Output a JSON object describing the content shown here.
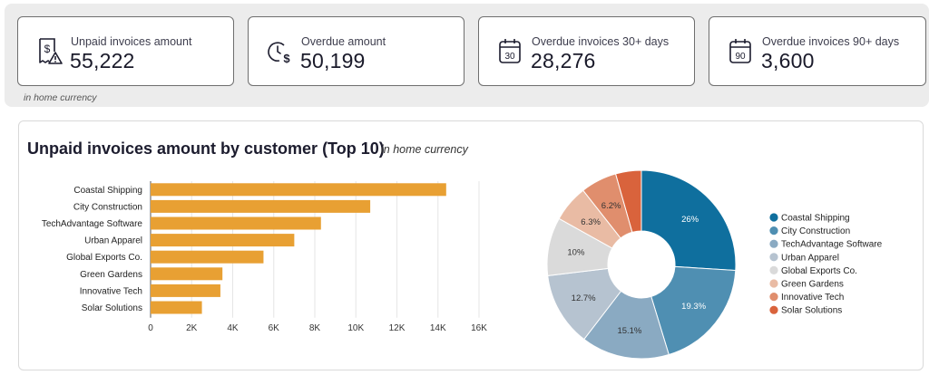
{
  "kpis": [
    {
      "label": "Unpaid invoices amount",
      "value": "55,222",
      "icon": "invoice-alert-icon"
    },
    {
      "label": "Overdue amount",
      "value": "50,199",
      "icon": "clock-dollar-icon"
    },
    {
      "label": "Overdue invoices 30+ days",
      "value": "28,276",
      "icon": "calendar-30-icon",
      "badge": "30"
    },
    {
      "label": "Overdue invoices 90+ days",
      "value": "3,600",
      "icon": "calendar-90-icon",
      "badge": "90"
    }
  ],
  "currency_note": "in home currency",
  "chart_data": [
    {
      "type": "bar",
      "orientation": "horizontal",
      "title": "Unpaid invoices amount by customer (Top 10)",
      "subtitle": "in home currency",
      "categories": [
        "Coastal Shipping",
        "City Construction",
        "TechAdvantage Software",
        "Urban Apparel",
        "Global Exports Co.",
        "Green Gardens",
        "Innovative Tech",
        "Solar Solutions"
      ],
      "values": [
        14400,
        10700,
        8300,
        7000,
        5500,
        3500,
        3400,
        2500
      ],
      "xlim": [
        0,
        16000
      ],
      "xticks": [
        0,
        2000,
        4000,
        6000,
        8000,
        10000,
        12000,
        14000,
        16000
      ],
      "xtick_labels": [
        "0",
        "2K",
        "4K",
        "6K",
        "8K",
        "10K",
        "12K",
        "14K",
        "16K"
      ],
      "grid": true,
      "colors": {
        "bar": "#e8a033",
        "grid": "#e6e6e6",
        "axis": "#555555"
      }
    },
    {
      "type": "pie",
      "donut": true,
      "labels": [
        "Coastal Shipping",
        "City Construction",
        "TechAdvantage Software",
        "Urban Apparel",
        "Global Exports Co.",
        "Green Gardens",
        "Innovative Tech",
        "Solar Solutions"
      ],
      "values": [
        26,
        19.3,
        15.1,
        12.7,
        10,
        6.3,
        6.2,
        4.4
      ],
      "slice_labels": [
        "26%",
        "19.3%",
        "15.1%",
        "12.7%",
        "10%",
        "6.3%",
        "6.2%",
        ""
      ],
      "colors": [
        "#0f6f9e",
        "#4f8fb2",
        "#8aaac2",
        "#b6c3d0",
        "#dadada",
        "#e9bba4",
        "#e08e6d",
        "#d9633c"
      ],
      "legend_position": "right"
    }
  ]
}
